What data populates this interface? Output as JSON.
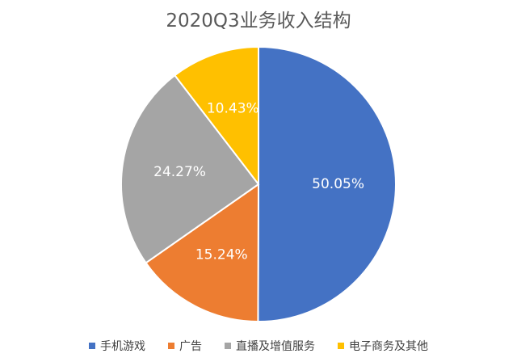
{
  "chart_data": {
    "type": "pie",
    "title": "2020Q3业务收入结构",
    "categories": [
      "手机游戏",
      "广告",
      "直播及增值服务",
      "电子商务及其他"
    ],
    "values": [
      50.05,
      15.24,
      24.27,
      10.43
    ],
    "labels": [
      "50.05%",
      "15.24%",
      "24.27%",
      "10.43%"
    ],
    "colors": [
      "#4472C4",
      "#ED7D31",
      "#A5A5A5",
      "#FFC000"
    ],
    "start": "12 o'clock, clockwise",
    "legend_position": "bottom"
  }
}
